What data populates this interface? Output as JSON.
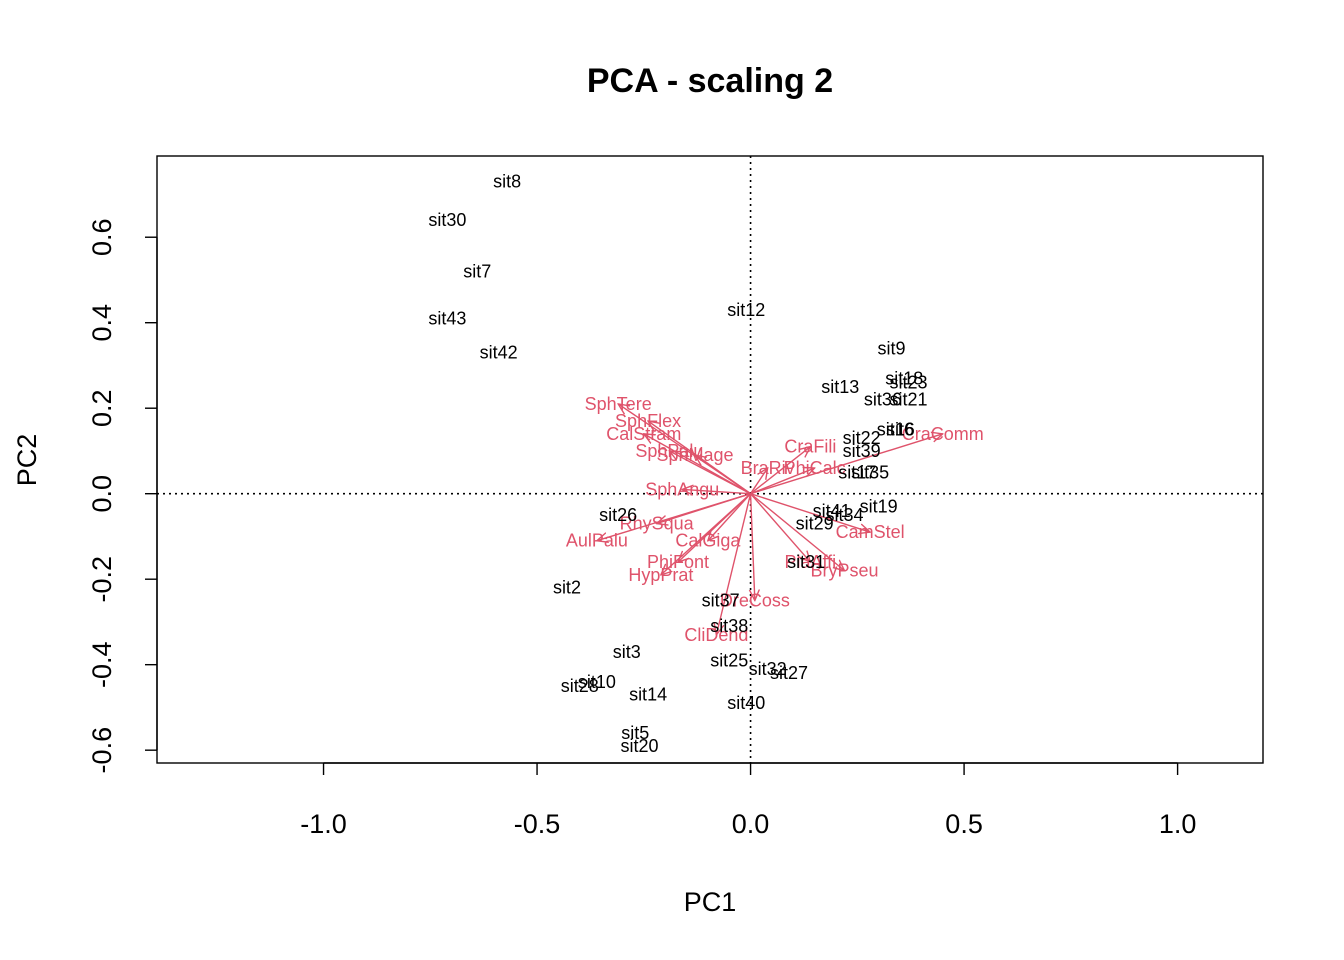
{
  "colors": {
    "species": "#DF536B",
    "sites": "#000000"
  },
  "chart_data": {
    "type": "scatter",
    "title": "PCA - scaling 2",
    "xlabel": "PC1",
    "ylabel": "PC2",
    "xlim": [
      -1.39,
      1.2
    ],
    "ylim": [
      -0.63,
      0.79
    ],
    "xticks": [
      -1.0,
      -0.5,
      0.0,
      0.5,
      1.0
    ],
    "xtick_labels": [
      "-1.0",
      "-0.5",
      "0.0",
      "0.5",
      "1.0"
    ],
    "yticks": [
      -0.6,
      -0.4,
      -0.2,
      0.0,
      0.2,
      0.4,
      0.6
    ],
    "ytick_labels": [
      "-0.6",
      "-0.4",
      "-0.2",
      "0.0",
      "0.2",
      "0.4",
      "0.6"
    ],
    "reference_lines": {
      "x": 0,
      "y": 0,
      "style": "dotted"
    },
    "sites": [
      {
        "name": "sit8",
        "x": -0.57,
        "y": 0.73
      },
      {
        "name": "sit30",
        "x": -0.71,
        "y": 0.64
      },
      {
        "name": "sit7",
        "x": -0.64,
        "y": 0.52
      },
      {
        "name": "sit43",
        "x": -0.71,
        "y": 0.41
      },
      {
        "name": "sit42",
        "x": -0.59,
        "y": 0.33
      },
      {
        "name": "sit12",
        "x": -0.01,
        "y": 0.43
      },
      {
        "name": "sit9",
        "x": 0.33,
        "y": 0.34
      },
      {
        "name": "sit18",
        "x": 0.36,
        "y": 0.27
      },
      {
        "name": "sit23",
        "x": 0.37,
        "y": 0.26
      },
      {
        "name": "sit13",
        "x": 0.21,
        "y": 0.25
      },
      {
        "name": "sit36",
        "x": 0.31,
        "y": 0.22
      },
      {
        "name": "sit21",
        "x": 0.37,
        "y": 0.22
      },
      {
        "name": "sit16",
        "x": 0.34,
        "y": 0.15
      },
      {
        "name": "sit6",
        "x": 0.35,
        "y": 0.15
      },
      {
        "name": "sit22",
        "x": 0.26,
        "y": 0.13
      },
      {
        "name": "sit39",
        "x": 0.26,
        "y": 0.1
      },
      {
        "name": "sit35",
        "x": 0.28,
        "y": 0.05
      },
      {
        "name": "sit17",
        "x": 0.25,
        "y": 0.05
      },
      {
        "name": "sit19",
        "x": 0.3,
        "y": -0.03
      },
      {
        "name": "sit34",
        "x": 0.22,
        "y": -0.05
      },
      {
        "name": "sit41",
        "x": 0.19,
        "y": -0.04
      },
      {
        "name": "sit29",
        "x": 0.15,
        "y": -0.07
      },
      {
        "name": "sit26",
        "x": -0.31,
        "y": -0.05
      },
      {
        "name": "sit2",
        "x": -0.43,
        "y": -0.22
      },
      {
        "name": "sit31",
        "x": 0.13,
        "y": -0.16
      },
      {
        "name": "sit37",
        "x": -0.07,
        "y": -0.25
      },
      {
        "name": "sit38",
        "x": -0.05,
        "y": -0.31
      },
      {
        "name": "sit3",
        "x": -0.29,
        "y": -0.37
      },
      {
        "name": "sit25",
        "x": -0.05,
        "y": -0.39
      },
      {
        "name": "sit32",
        "x": 0.04,
        "y": -0.41
      },
      {
        "name": "sit27",
        "x": 0.09,
        "y": -0.42
      },
      {
        "name": "sit10",
        "x": -0.36,
        "y": -0.44
      },
      {
        "name": "sit28",
        "x": -0.4,
        "y": -0.45
      },
      {
        "name": "sit14",
        "x": -0.24,
        "y": -0.47
      },
      {
        "name": "sit40",
        "x": -0.01,
        "y": -0.49
      },
      {
        "name": "sit5",
        "x": -0.27,
        "y": -0.56
      },
      {
        "name": "sit20",
        "x": -0.26,
        "y": -0.59
      }
    ],
    "species": [
      {
        "name": "SphTere",
        "x": -0.31,
        "y": 0.21
      },
      {
        "name": "SphFlex",
        "x": -0.24,
        "y": 0.17
      },
      {
        "name": "CalStram",
        "x": -0.25,
        "y": 0.14
      },
      {
        "name": "SphPalu",
        "x": -0.19,
        "y": 0.1
      },
      {
        "name": "SphMage",
        "x": -0.13,
        "y": 0.09
      },
      {
        "name": "SphAngu",
        "x": -0.16,
        "y": 0.01
      },
      {
        "name": "RhySqua",
        "x": -0.22,
        "y": -0.07
      },
      {
        "name": "AulPalu",
        "x": -0.36,
        "y": -0.11
      },
      {
        "name": "HypPrat",
        "x": -0.21,
        "y": -0.19
      },
      {
        "name": "PhiFont",
        "x": -0.17,
        "y": -0.16
      },
      {
        "name": "CalGiga",
        "x": -0.1,
        "y": -0.11
      },
      {
        "name": "DreCoss",
        "x": 0.01,
        "y": -0.25
      },
      {
        "name": "CliDend",
        "x": -0.08,
        "y": -0.33
      },
      {
        "name": "CraFili",
        "x": 0.14,
        "y": 0.11
      },
      {
        "name": "BraRiv",
        "x": 0.04,
        "y": 0.06
      },
      {
        "name": "PhiCalc",
        "x": 0.15,
        "y": 0.06
      },
      {
        "name": "CraComm",
        "x": 0.45,
        "y": 0.14
      },
      {
        "name": "CamStel",
        "x": 0.28,
        "y": -0.09
      },
      {
        "name": "PlaAffi",
        "x": 0.14,
        "y": -0.16
      },
      {
        "name": "BryPseu",
        "x": 0.22,
        "y": -0.18
      }
    ]
  }
}
